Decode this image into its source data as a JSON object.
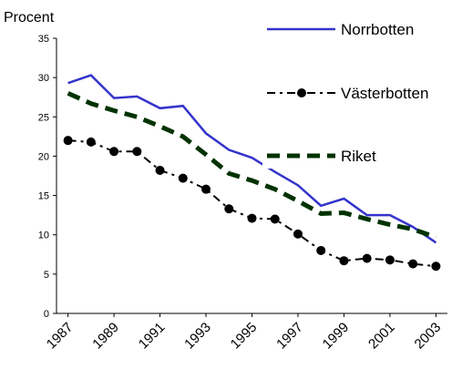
{
  "chart_data": {
    "type": "line",
    "ylabel": "Procent",
    "x": [
      1987,
      1988,
      1989,
      1990,
      1991,
      1992,
      1993,
      1994,
      1995,
      1996,
      1997,
      1998,
      1999,
      2000,
      2001,
      2002,
      2003
    ],
    "xlim": [
      1986.5,
      2003.5
    ],
    "xticks": [
      1987,
      1989,
      1991,
      1993,
      1995,
      1997,
      1999,
      2001,
      2003
    ],
    "ylim": [
      0,
      35
    ],
    "yticks": [
      0,
      5,
      10,
      15,
      20,
      25,
      30,
      35
    ],
    "series": [
      {
        "name": "Norrbotten",
        "color": "#3333cc",
        "dash": "solid",
        "marker": "none",
        "values": [
          29.3,
          30.3,
          27.4,
          27.6,
          26.1,
          26.4,
          22.9,
          20.8,
          19.8,
          18.0,
          16.3,
          13.7,
          14.6,
          12.5,
          12.5,
          11.0,
          9.0
        ]
      },
      {
        "name": "Västerbotten",
        "color": "#000000",
        "dash": "dashdot",
        "marker": "circle",
        "values": [
          22.0,
          21.8,
          20.6,
          20.6,
          18.2,
          17.2,
          15.8,
          13.3,
          12.1,
          12.0,
          10.1,
          8.0,
          6.7,
          7.0,
          6.8,
          6.3,
          6.0
        ]
      },
      {
        "name": "Riket",
        "color": "#003300",
        "dash": "dashed",
        "marker": "none",
        "values": [
          28.0,
          26.7,
          25.8,
          25.0,
          23.8,
          22.5,
          20.2,
          17.8,
          16.9,
          15.8,
          14.3,
          12.7,
          12.8,
          12.0,
          11.3,
          10.7,
          9.7
        ]
      }
    ]
  }
}
